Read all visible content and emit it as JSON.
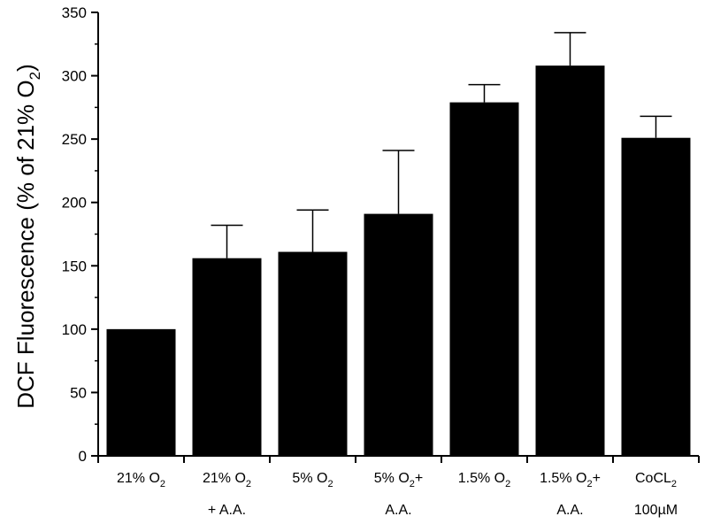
{
  "chart_data": {
    "type": "bar",
    "ylabel": "DCF Fluorescence (% of 21% O2)",
    "ylabel_parts": {
      "prefix": "DCF Fluorescence (% of 21% O",
      "sub": "2",
      "suffix": ")"
    },
    "ylim": [
      0,
      350
    ],
    "yticks": [
      0,
      50,
      100,
      150,
      200,
      250,
      300,
      350
    ],
    "categories": [
      {
        "line1": "21% O",
        "sub": "2",
        "line1_after": "",
        "line2": ""
      },
      {
        "line1": "21% O",
        "sub": "2",
        "line1_after": "",
        "line2": "+ A.A."
      },
      {
        "line1": "5% O",
        "sub": "2",
        "line1_after": "",
        "line2": ""
      },
      {
        "line1": "5% O",
        "sub": "2",
        "line1_after": "+",
        "line2": "A.A."
      },
      {
        "line1": "1.5% O",
        "sub": "2",
        "line1_after": "",
        "line2": ""
      },
      {
        "line1": "1.5% O",
        "sub": "2",
        "line1_after": "+",
        "line2": "A.A."
      },
      {
        "line1": "CoCL",
        "sub": "2",
        "line1_after": "",
        "line2": "100µM"
      }
    ],
    "values": [
      100,
      156,
      161,
      191,
      279,
      308,
      251
    ],
    "errors": [
      0,
      26,
      33,
      50,
      14,
      26,
      17
    ],
    "bar_color": "#000000",
    "grid": false
  }
}
